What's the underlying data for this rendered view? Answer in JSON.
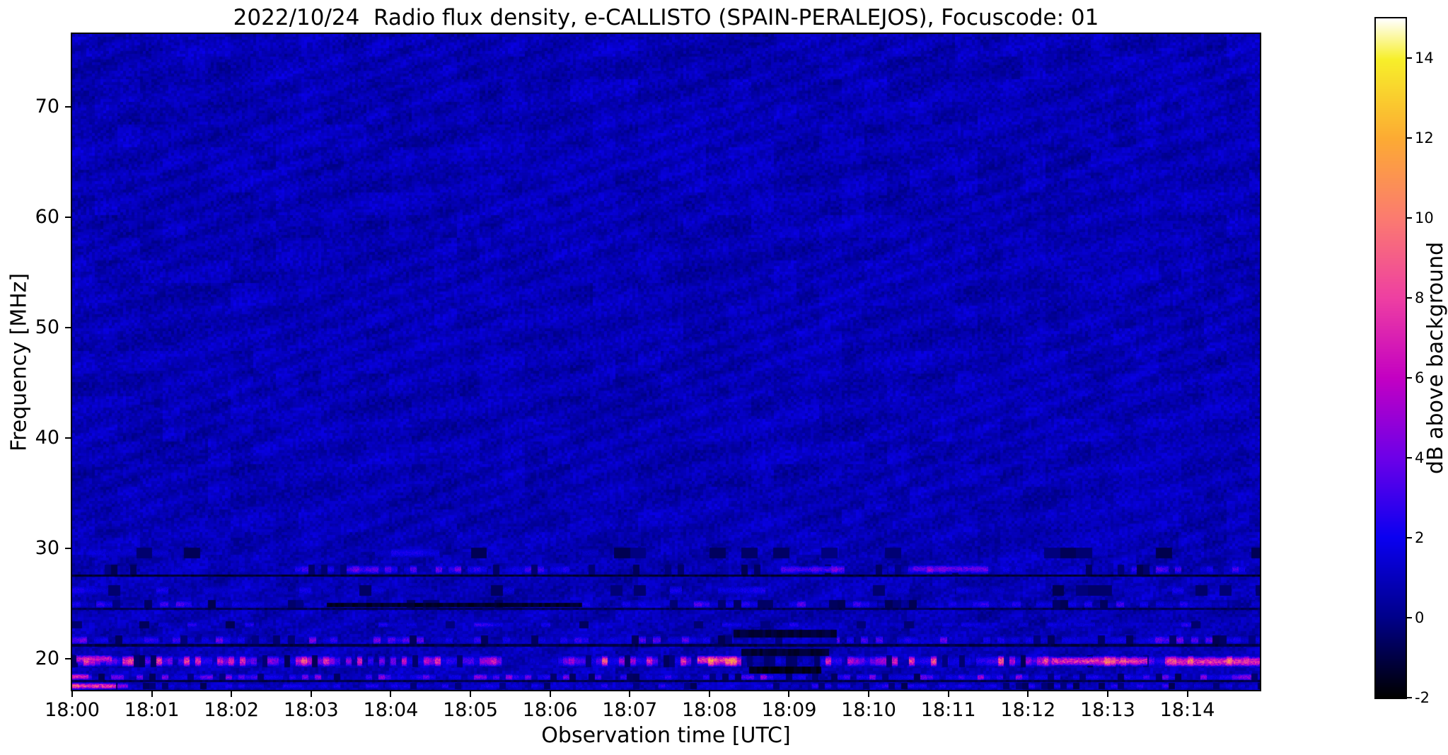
{
  "figure": {
    "background": "#ffffff"
  },
  "chart_data": {
    "type": "heatmap",
    "title": "2022/10/24  Radio flux density, e-CALLISTO (SPAIN-PERALEJOS), Focuscode: 01",
    "xlabel": "Observation time [UTC]",
    "ylabel": "Frequency [MHz]",
    "x_tick_minutes": [
      0,
      1,
      2,
      3,
      4,
      5,
      6,
      7,
      8,
      9,
      10,
      11,
      12,
      13,
      14
    ],
    "x_tick_labels": [
      "18:00",
      "18:01",
      "18:02",
      "18:03",
      "18:04",
      "18:05",
      "18:06",
      "18:07",
      "18:08",
      "18:09",
      "18:10",
      "18:11",
      "18:12",
      "18:13",
      "18:14"
    ],
    "y_tick_values": [
      20,
      30,
      40,
      50,
      60,
      70
    ],
    "y_tick_labels": [
      "20",
      "30",
      "40",
      "50",
      "60",
      "70"
    ],
    "time_range_min": [
      0,
      14.91
    ],
    "freq_range_mhz": [
      17.2,
      76.6
    ],
    "colorbar": {
      "label": "dB above background",
      "vmin": -2,
      "vmax": 15,
      "tick_values": [
        -2,
        0,
        2,
        4,
        6,
        8,
        10,
        12,
        14
      ],
      "tick_labels": [
        "-2",
        "0",
        "2",
        "4",
        "6",
        "8",
        "10",
        "12",
        "14"
      ]
    },
    "colormap": {
      "name": "gnuplot2-like",
      "stops": [
        [
          0,
          "#000000"
        ],
        [
          0.118,
          "#00008b"
        ],
        [
          0.235,
          "#0a00f0"
        ],
        [
          0.353,
          "#6d00e8"
        ],
        [
          0.47,
          "#c300c3"
        ],
        [
          0.588,
          "#ee3fa2"
        ],
        [
          0.706,
          "#fb7b70"
        ],
        [
          0.824,
          "#fcab33"
        ],
        [
          0.94,
          "#f7ef2a"
        ],
        [
          1,
          "#ffffff"
        ]
      ]
    },
    "background_model": {
      "base": 0.85,
      "noise": 1.0,
      "coarse": 0.6,
      "ripple": 0.25
    },
    "rfi_bands": [
      {
        "f": 28.1,
        "hw": 0.45,
        "cell": 0.08,
        "density": 0.55,
        "lo": 1.5,
        "hi": 4.5,
        "gain": [
          [
            0,
            2.8,
            0.45
          ],
          [
            2.8,
            6.4,
            1
          ],
          [
            6.4,
            8.9,
            0.5
          ],
          [
            8.9,
            9.7,
            1
          ],
          [
            9.7,
            10.5,
            0.4
          ],
          [
            10.5,
            11.5,
            1.2
          ],
          [
            11.5,
            13.3,
            0.5
          ],
          [
            13.3,
            14.91,
            0.9
          ]
        ]
      },
      {
        "f": 24.95,
        "hw": 0.4,
        "cell": 0.1,
        "density": 0.5,
        "lo": 1.2,
        "hi": 4,
        "gain": [
          [
            3.2,
            6.4,
            0.5
          ],
          [
            0,
            14.91,
            0.95
          ]
        ]
      },
      {
        "f": 23.1,
        "hw": 0.3,
        "cell": 0.12,
        "density": 0.3,
        "lo": 1,
        "hi": 3,
        "gain": [
          [
            0,
            14.91,
            1
          ]
        ]
      },
      {
        "f": 21.7,
        "hw": 0.45,
        "cell": 0.09,
        "density": 0.5,
        "lo": 1.2,
        "hi": 4.2,
        "gain": [
          [
            8.3,
            9.6,
            0.3
          ],
          [
            0,
            14.91,
            1
          ]
        ]
      },
      {
        "f": 19.8,
        "hw": 0.55,
        "cell": 0.07,
        "density": 0.75,
        "lo": 2,
        "hi": 9,
        "gain": [
          [
            0,
            0.6,
            1.25
          ],
          [
            5.4,
            6.1,
            0.45
          ],
          [
            7.85,
            8.35,
            1.3
          ],
          [
            8.5,
            9.4,
            0.2
          ],
          [
            11,
            11.35,
            0.45
          ],
          [
            12.2,
            13.55,
            1.2
          ],
          [
            13.75,
            14.91,
            1.25
          ],
          [
            0,
            14.91,
            1
          ]
        ]
      },
      {
        "f": 18.35,
        "hw": 0.35,
        "cell": 0.08,
        "density": 0.6,
        "lo": 1.5,
        "hi": 5,
        "gain": [
          [
            0,
            0.25,
            1.8
          ],
          [
            0,
            14.91,
            1
          ]
        ]
      },
      {
        "f": 17.55,
        "hw": 0.3,
        "cell": 0.08,
        "density": 0.6,
        "lo": 1,
        "hi": 3,
        "gain": [
          [
            0,
            0.7,
            3
          ],
          [
            0,
            14.91,
            1
          ]
        ]
      },
      {
        "f": 26.2,
        "hw": 0.5,
        "cell": 0.15,
        "density": 0.2,
        "lo": 1,
        "hi": 2.5,
        "gain": [
          [
            0,
            14.91,
            1
          ]
        ]
      },
      {
        "f": 29.6,
        "hw": 0.5,
        "cell": 0.2,
        "density": 0.15,
        "lo": 1,
        "hi": 2.2,
        "gain": [
          [
            0,
            14.91,
            1
          ]
        ]
      }
    ],
    "dark_lines": [
      {
        "f": 27.55,
        "hw": 0.12,
        "v": -1.3,
        "t0": 0,
        "t1": 14.91
      },
      {
        "f": 24.9,
        "hw": 0.18,
        "v": -1.4,
        "t0": 3.2,
        "t1": 6.4
      },
      {
        "f": 24.55,
        "hw": 0.1,
        "v": -0.8,
        "t0": 0,
        "t1": 14.91
      },
      {
        "f": 21.25,
        "hw": 0.12,
        "v": -1.0,
        "t0": 0,
        "t1": 14.91
      },
      {
        "f": 20.6,
        "hw": 0.3,
        "v": -1.3,
        "t0": 8.4,
        "t1": 9.5
      },
      {
        "f": 19.0,
        "hw": 0.3,
        "v": -1.6,
        "t0": 8.5,
        "t1": 9.4
      },
      {
        "f": 22.3,
        "hw": 0.35,
        "v": -1.2,
        "t0": 8.3,
        "t1": 9.6
      },
      {
        "f": 18.0,
        "hw": 0.1,
        "v": -0.9,
        "t0": 0,
        "t1": 14.91
      }
    ],
    "hot_spots": [
      {
        "f": 17.55,
        "hw": 0.3,
        "v": 9,
        "t0": 0,
        "t1": 0.55
      },
      {
        "f": 18.4,
        "hw": 0.3,
        "v": 8,
        "t0": 0,
        "t1": 0.2
      },
      {
        "f": 20.0,
        "hw": 0.4,
        "v": 7.5,
        "t0": 0.05,
        "t1": 0.5
      },
      {
        "f": 19.9,
        "hw": 0.45,
        "v": 9.5,
        "t0": 7.85,
        "t1": 8.35
      },
      {
        "f": 28.1,
        "hw": 0.35,
        "v": 3.8,
        "t0": 9.0,
        "t1": 9.65
      },
      {
        "f": 28.15,
        "hw": 0.4,
        "v": 4.5,
        "t0": 10.55,
        "t1": 11.45
      },
      {
        "f": 19.8,
        "hw": 0.45,
        "v": 8.5,
        "t0": 12.3,
        "t1": 13.5
      },
      {
        "f": 19.75,
        "hw": 0.5,
        "v": 8.5,
        "t0": 13.8,
        "t1": 14.91
      }
    ]
  }
}
